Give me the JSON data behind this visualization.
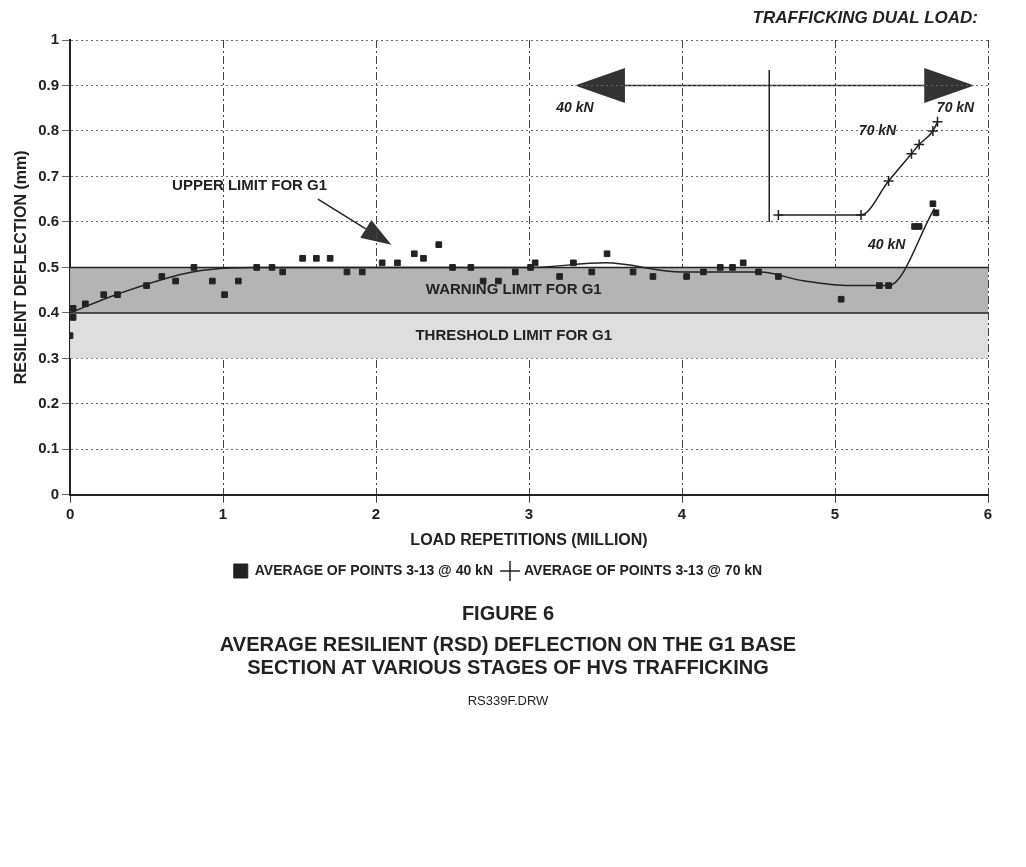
{
  "chart_data": {
    "type": "scatter",
    "title": "AVERAGE RESILIENT (RSD) DEFLECTION ON THE G1 BASE SECTION AT VARIOUS STAGES OF HVS TRAFFICKING",
    "subtitle": "FIGURE 6",
    "xlabel": "LOAD REPETITIONS (MILLION)",
    "ylabel": "RESILIENT DEFLECTION (mm)",
    "xlim": [
      0,
      6
    ],
    "xticks": [
      0,
      1,
      2,
      3,
      4,
      5,
      6
    ],
    "ylim": [
      0,
      1
    ],
    "yticks": [
      0,
      0.1,
      0.2,
      0.3,
      0.4,
      0.5,
      0.6,
      0.7,
      0.8,
      0.9,
      1
    ],
    "grid": true,
    "legend": "bottom",
    "series": [
      {
        "name": "AVERAGE OF POINTS 3-13 @ 40 kN",
        "type": "scatter",
        "marker": "square",
        "color": "#222222",
        "x": [
          0,
          0.02,
          0.02,
          0.1,
          0.22,
          0.31,
          0.5,
          0.6,
          0.69,
          0.81,
          0.93,
          1.01,
          1.1,
          1.22,
          1.32,
          1.39,
          1.52,
          1.61,
          1.7,
          1.81,
          1.91,
          2.04,
          2.14,
          2.25,
          2.31,
          2.41,
          2.5,
          2.62,
          2.7,
          2.8,
          2.91,
          3.01,
          3.04,
          3.2,
          3.29,
          3.41,
          3.51,
          3.68,
          3.81,
          4.03,
          4.14,
          4.25,
          4.33,
          4.4,
          4.5,
          4.63,
          5.04,
          5.29,
          5.35,
          5.52,
          5.55,
          5.64,
          5.66
        ],
        "values": [
          0.35,
          0.39,
          0.41,
          0.42,
          0.44,
          0.44,
          0.46,
          0.48,
          0.47,
          0.5,
          0.47,
          0.44,
          0.47,
          0.5,
          0.5,
          0.49,
          0.52,
          0.52,
          0.52,
          0.49,
          0.49,
          0.51,
          0.51,
          0.53,
          0.52,
          0.55,
          0.5,
          0.5,
          0.47,
          0.47,
          0.49,
          0.5,
          0.51,
          0.48,
          0.51,
          0.49,
          0.53,
          0.49,
          0.48,
          0.48,
          0.49,
          0.5,
          0.5,
          0.51,
          0.49,
          0.48,
          0.43,
          0.46,
          0.46,
          0.59,
          0.59,
          0.64,
          0.62
        ]
      },
      {
        "name": "AVERAGE OF POINTS 3-13 @ 70 kN",
        "type": "line",
        "marker": "cross",
        "color": "#222222",
        "x": [
          4.63,
          5.17,
          5.35,
          5.5,
          5.55,
          5.64,
          5.67
        ],
        "values": [
          0.615,
          0.615,
          0.69,
          0.75,
          0.77,
          0.8,
          0.82
        ]
      },
      {
        "type": "line",
        "marker": "none",
        "color": "#222222",
        "x": [
          0,
          0.3,
          0.8,
          1.3,
          2,
          2.5,
          3,
          3.5,
          4,
          4.5,
          4.8,
          5.1,
          5.35,
          5.65
        ],
        "values": [
          0.4,
          0.44,
          0.49,
          0.5,
          0.5,
          0.5,
          0.5,
          0.51,
          0.49,
          0.49,
          0.47,
          0.46,
          0.46,
          0.63
        ]
      }
    ],
    "bands": [
      {
        "axis": "y",
        "from": 0.4,
        "to": 0.5,
        "label": "WARNING LIMIT FOR G1",
        "color": "#b4b4b4"
      },
      {
        "axis": "y",
        "from": 0.3,
        "to": 0.4,
        "label": "THRESHOLD LIMIT FOR G1",
        "color": "#dedede"
      }
    ],
    "ref_lines": [
      {
        "axis": "x",
        "value": 4.57,
        "color": "#222222"
      }
    ],
    "annotations": [
      "TRAFFICKING DUAL LOAD:",
      "40 kN",
      "70 kN",
      "UPPER LIMIT FOR G1",
      "70 kN",
      "40 kN",
      "RS339F.DRW"
    ]
  }
}
